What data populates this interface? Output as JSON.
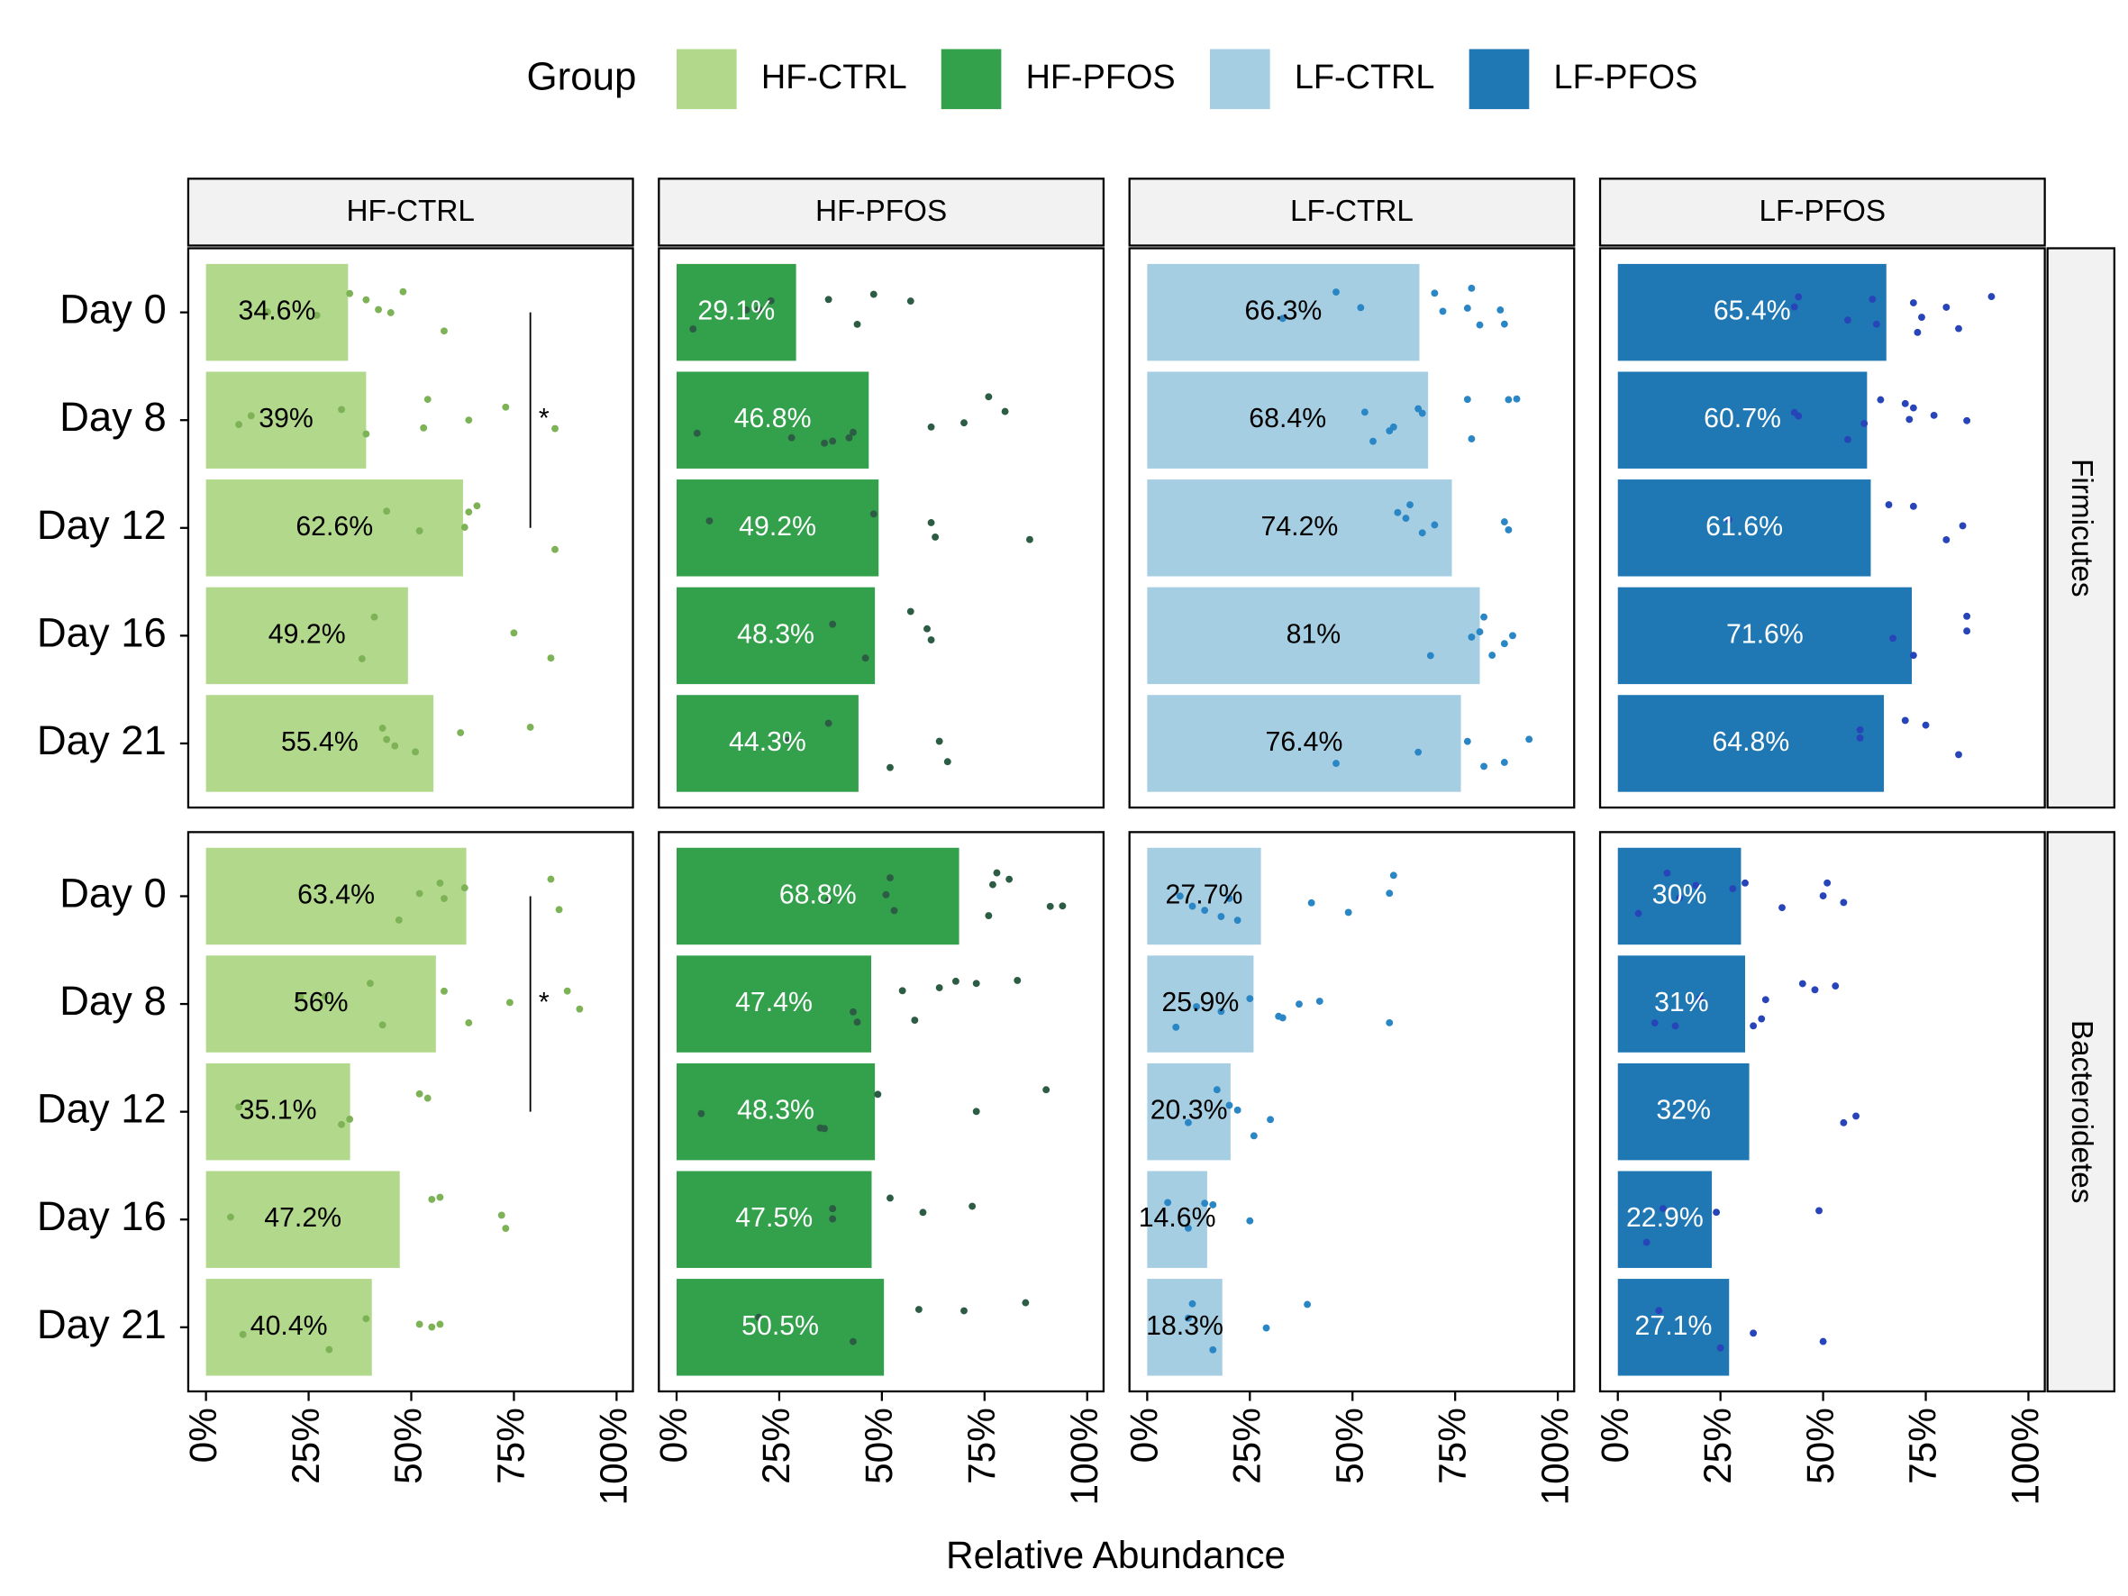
{
  "chart_data": {
    "type": "bar",
    "legend_title": "Group",
    "xlabel": "Relative Abundance",
    "xlim": [
      0,
      100
    ],
    "xticks": [
      {
        "value": 0,
        "label": "0%"
      },
      {
        "value": 25,
        "label": "25%"
      },
      {
        "value": 50,
        "label": "50%"
      },
      {
        "value": 75,
        "label": "75%"
      },
      {
        "value": 100,
        "label": "100%"
      }
    ],
    "categories": [
      "Day 0",
      "Day 8",
      "Day 12",
      "Day 16",
      "Day 21"
    ],
    "facet_rows": [
      "Firmicutes",
      "Bacteroidetes"
    ],
    "series": [
      {
        "name": "HF-CTRL",
        "color": "#b2d98b",
        "label_color": "#000000",
        "point_color": "#7db356",
        "values": [
          [
            34.6,
            39,
            62.6,
            49.2,
            55.4
          ],
          [
            63.4,
            56,
            35.1,
            47.2,
            40.4
          ]
        ],
        "value_labels": [
          [
            "34.6%",
            "39%",
            "62.6%",
            "49.2%",
            "55.4%"
          ],
          [
            "63.4%",
            "56%",
            "35.1%",
            "47.2%",
            "40.4%"
          ]
        ],
        "points": [
          [
            [
              15,
              27,
              35,
              39,
              42,
              45,
              48,
              58
            ],
            [
              8,
              11,
              33,
              39,
              53,
              54,
              64,
              73,
              85
            ],
            [
              44,
              52,
              63,
              64,
              66,
              85
            ],
            [
              38,
              41,
              75,
              84
            ],
            [
              43,
              44,
              46,
              51,
              62,
              79
            ]
          ],
          [
            [
              47,
              52,
              57,
              58,
              63,
              84,
              86
            ],
            [
              23,
              29,
              40,
              43,
              58,
              64,
              74,
              88,
              91
            ],
            [
              8,
              33,
              35,
              52,
              54
            ],
            [
              6,
              55,
              57,
              72,
              73
            ],
            [
              9,
              30,
              39,
              52,
              55,
              57
            ]
          ]
        ]
      },
      {
        "name": "HF-PFOS",
        "color": "#33a04b",
        "label_color": "#ffffff",
        "point_color": "#2d5c44",
        "values": [
          [
            29.1,
            46.8,
            49.2,
            48.3,
            44.3
          ],
          [
            68.8,
            47.4,
            48.3,
            47.5,
            50.5
          ]
        ],
        "value_labels": [
          [
            "29.1%",
            "46.8%",
            "49.2%",
            "48.3%",
            "44.3%"
          ],
          [
            "68.8%",
            "47.4%",
            "48.3%",
            "47.5%",
            "50.5%"
          ]
        ],
        "points": [
          [
            [
              4,
              17,
              20,
              23,
              37,
              44,
              48,
              57
            ],
            [
              5,
              28,
              36,
              38,
              42,
              43,
              62,
              70,
              76,
              80
            ],
            [
              8,
              48,
              62,
              63,
              86
            ],
            [
              38,
              46,
              57,
              61,
              62
            ],
            [
              27,
              37,
              52,
              64,
              66
            ]
          ],
          [
            [
              37,
              51,
              52,
              53,
              76,
              77,
              78,
              81,
              91,
              94
            ],
            [
              43,
              44,
              55,
              58,
              64,
              68,
              73,
              83
            ],
            [
              6,
              35,
              36,
              49,
              73,
              90
            ],
            [
              38,
              38,
              52,
              60,
              72
            ],
            [
              20,
              43,
              59,
              70,
              85
            ]
          ]
        ]
      },
      {
        "name": "LF-CTRL",
        "color": "#a6cee3",
        "label_color": "#000000",
        "point_color": "#2a86c4",
        "values": [
          [
            66.3,
            68.4,
            74.2,
            81,
            76.4
          ],
          [
            27.7,
            25.9,
            20.3,
            14.6,
            18.3
          ]
        ],
        "value_labels": [
          [
            "66.3%",
            "68.4%",
            "74.2%",
            "81%",
            "76.4%"
          ],
          [
            "27.7%",
            "25.9%",
            "20.3%",
            "14.6%",
            "18.3%"
          ]
        ],
        "points": [
          [
            [
              33,
              46,
              52,
              70,
              72,
              78,
              79,
              81,
              86,
              87
            ],
            [
              53,
              55,
              59,
              60,
              66,
              67,
              78,
              79,
              88,
              90
            ],
            [
              61,
              63,
              64,
              67,
              70,
              87,
              88
            ],
            [
              69,
              79,
              81,
              82,
              84,
              87,
              89
            ],
            [
              46,
              66,
              78,
              82,
              87,
              93
            ]
          ],
          [
            [
              8,
              11,
              14,
              18,
              20,
              22,
              40,
              49,
              59,
              60
            ],
            [
              7,
              12,
              18,
              25,
              32,
              33,
              37,
              42,
              59
            ],
            [
              10,
              17,
              20,
              22,
              26,
              30
            ],
            [
              5,
              10,
              14,
              16,
              25
            ],
            [
              10,
              11,
              16,
              29,
              39
            ]
          ]
        ]
      },
      {
        "name": "LF-PFOS",
        "color": "#1f78b4",
        "label_color": "#ffffff",
        "point_color": "#2745b8",
        "values": [
          [
            65.4,
            60.7,
            61.6,
            71.6,
            64.8
          ],
          [
            30,
            31,
            32,
            22.9,
            27.1
          ]
        ],
        "value_labels": [
          [
            "65.4%",
            "60.7%",
            "61.6%",
            "71.6%",
            "64.8%"
          ],
          [
            "30%",
            "31%",
            "32%",
            "22.9%",
            "27.1%"
          ]
        ],
        "points": [
          [
            [
              43,
              44,
              56,
              62,
              63,
              72,
              73,
              74,
              80,
              83,
              91
            ],
            [
              43,
              44,
              56,
              60,
              64,
              70,
              71,
              72,
              77,
              85
            ],
            [
              27,
              66,
              72,
              80,
              84
            ],
            [
              67,
              72,
              85,
              85
            ],
            [
              59,
              59,
              70,
              75,
              83
            ]
          ],
          [
            [
              5,
              12,
              15,
              19,
              28,
              31,
              40,
              50,
              51,
              55
            ],
            [
              9,
              14,
              20,
              33,
              35,
              36,
              45,
              48,
              53
            ],
            [
              55,
              58
            ],
            [
              7,
              11,
              24,
              49
            ],
            [
              10,
              25,
              33,
              50
            ]
          ]
        ]
      }
    ],
    "annotations": [
      {
        "text": "*",
        "series": "HF-CTRL",
        "row": "Firmicutes",
        "from": "Day 0",
        "to": "Day 12",
        "x": 79
      },
      {
        "text": "*",
        "series": "HF-CTRL",
        "row": "Bacteroidetes",
        "from": "Day 0",
        "to": "Day 12",
        "x": 79
      }
    ]
  }
}
